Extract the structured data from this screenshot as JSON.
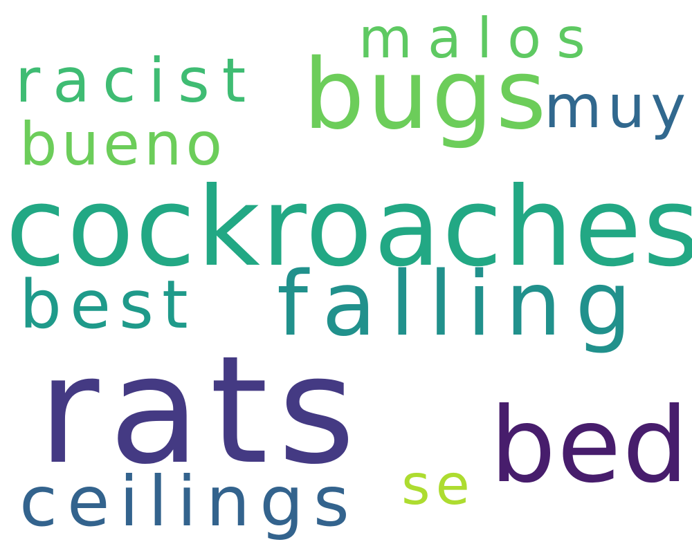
{
  "words": {
    "rats": {
      "text": "rats",
      "color": "#443a83"
    },
    "cockroaches": {
      "text": "cockroaches",
      "color": "#22a884"
    },
    "bugs": {
      "text": "bugs",
      "color": "#6ccd5a"
    },
    "bed": {
      "text": "bed",
      "color": "#471d6c"
    },
    "falling": {
      "text": "falling",
      "color": "#21918c"
    },
    "best": {
      "text": "best",
      "color": "#1f9a8a"
    },
    "ceilings": {
      "text": "ceilings",
      "color": "#33638d"
    },
    "racist": {
      "text": "racist",
      "color": "#3fbc73"
    },
    "bueno": {
      "text": "bueno",
      "color": "#6ccd5a"
    },
    "malos": {
      "text": "malos",
      "color": "#5ec962"
    },
    "muy": {
      "text": "muy",
      "color": "#31688e"
    },
    "se": {
      "text": "se",
      "color": "#addc30"
    }
  },
  "background_color": "#ffffff"
}
